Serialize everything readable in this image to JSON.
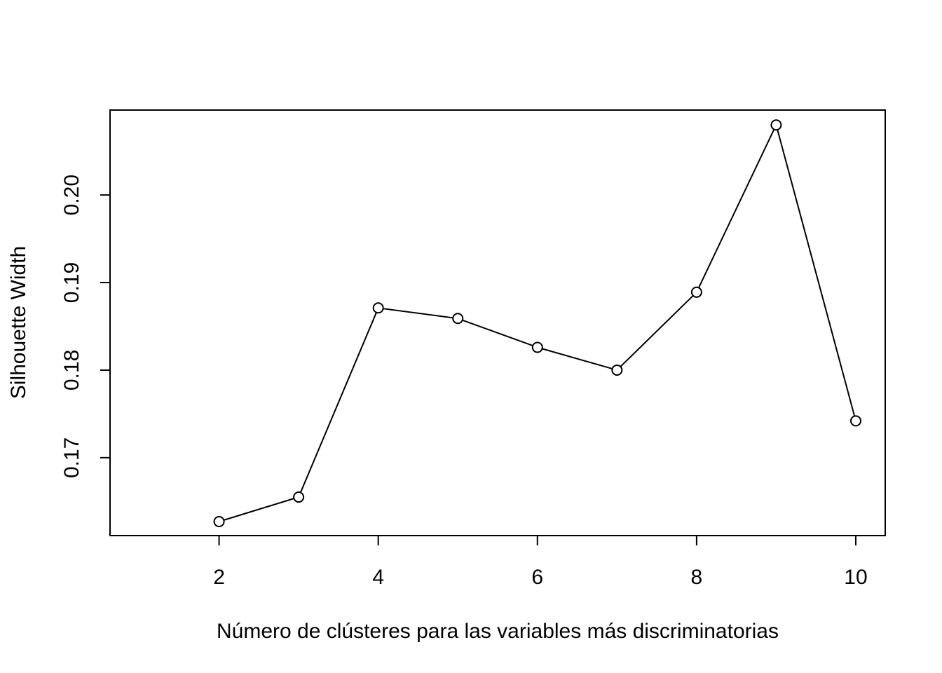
{
  "chart_data": {
    "type": "line",
    "title": "",
    "xlabel": "Número de clústeres para las variables más discriminatorias",
    "ylabel": "Silhouette Width",
    "x": [
      2,
      3,
      4,
      5,
      6,
      7,
      8,
      9,
      10
    ],
    "series": [
      {
        "values": [
          0.1627,
          0.1655,
          0.1871,
          0.1859,
          0.1826,
          0.18,
          0.1889,
          0.208,
          0.1742
        ]
      }
    ],
    "xlim": [
      0.63,
      10.37
    ],
    "ylim": [
      0.1611,
      0.2097
    ],
    "xticks": [
      2,
      4,
      6,
      8,
      10
    ],
    "xtick_labels": [
      "2",
      "4",
      "6",
      "8",
      "10"
    ],
    "yticks": [
      0.17,
      0.18,
      0.19,
      0.2
    ],
    "ytick_labels": [
      "0.17",
      "0.18",
      "0.19",
      "0.20"
    ],
    "grid": false,
    "marker": "open-circle",
    "color": "#000000"
  }
}
